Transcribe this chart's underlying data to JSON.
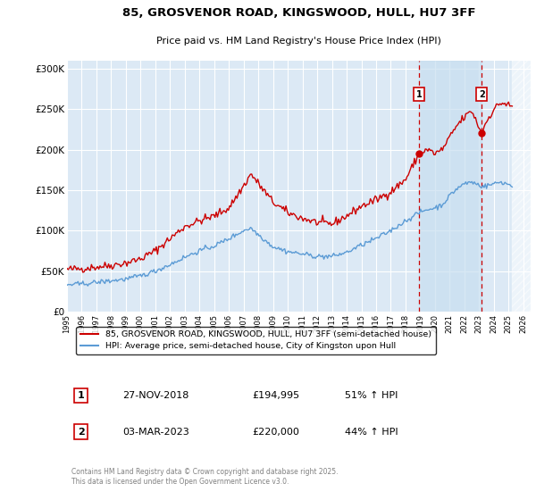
{
  "title1": "85, GROSVENOR ROAD, KINGSWOOD, HULL, HU7 3FF",
  "title2": "Price paid vs. HM Land Registry's House Price Index (HPI)",
  "legend_label1": "85, GROSVENOR ROAD, KINGSWOOD, HULL, HU7 3FF (semi-detached house)",
  "legend_label2": "HPI: Average price, semi-detached house, City of Kingston upon Hull",
  "annotation1_date": "27-NOV-2018",
  "annotation1_price": "£194,995",
  "annotation1_hpi": "51% ↑ HPI",
  "annotation2_date": "03-MAR-2023",
  "annotation2_price": "£220,000",
  "annotation2_hpi": "44% ↑ HPI",
  "footer": "Contains HM Land Registry data © Crown copyright and database right 2025.\nThis data is licensed under the Open Government Licence v3.0.",
  "red_color": "#cc0000",
  "blue_color": "#5b9bd5",
  "background_color": "#dce9f5",
  "shade_color": "#dce9f5",
  "ylim": [
    0,
    310000
  ],
  "yticks": [
    0,
    50000,
    100000,
    150000,
    200000,
    250000,
    300000
  ],
  "ytick_labels": [
    "£0",
    "£50K",
    "£100K",
    "£150K",
    "£200K",
    "£250K",
    "£300K"
  ],
  "sale1_x": 2018.92,
  "sale1_y": 194995,
  "sale2_x": 2023.17,
  "sale2_y": 220000,
  "xlim_left": 1995.0,
  "xlim_right": 2026.5,
  "future_start": 2025.25
}
